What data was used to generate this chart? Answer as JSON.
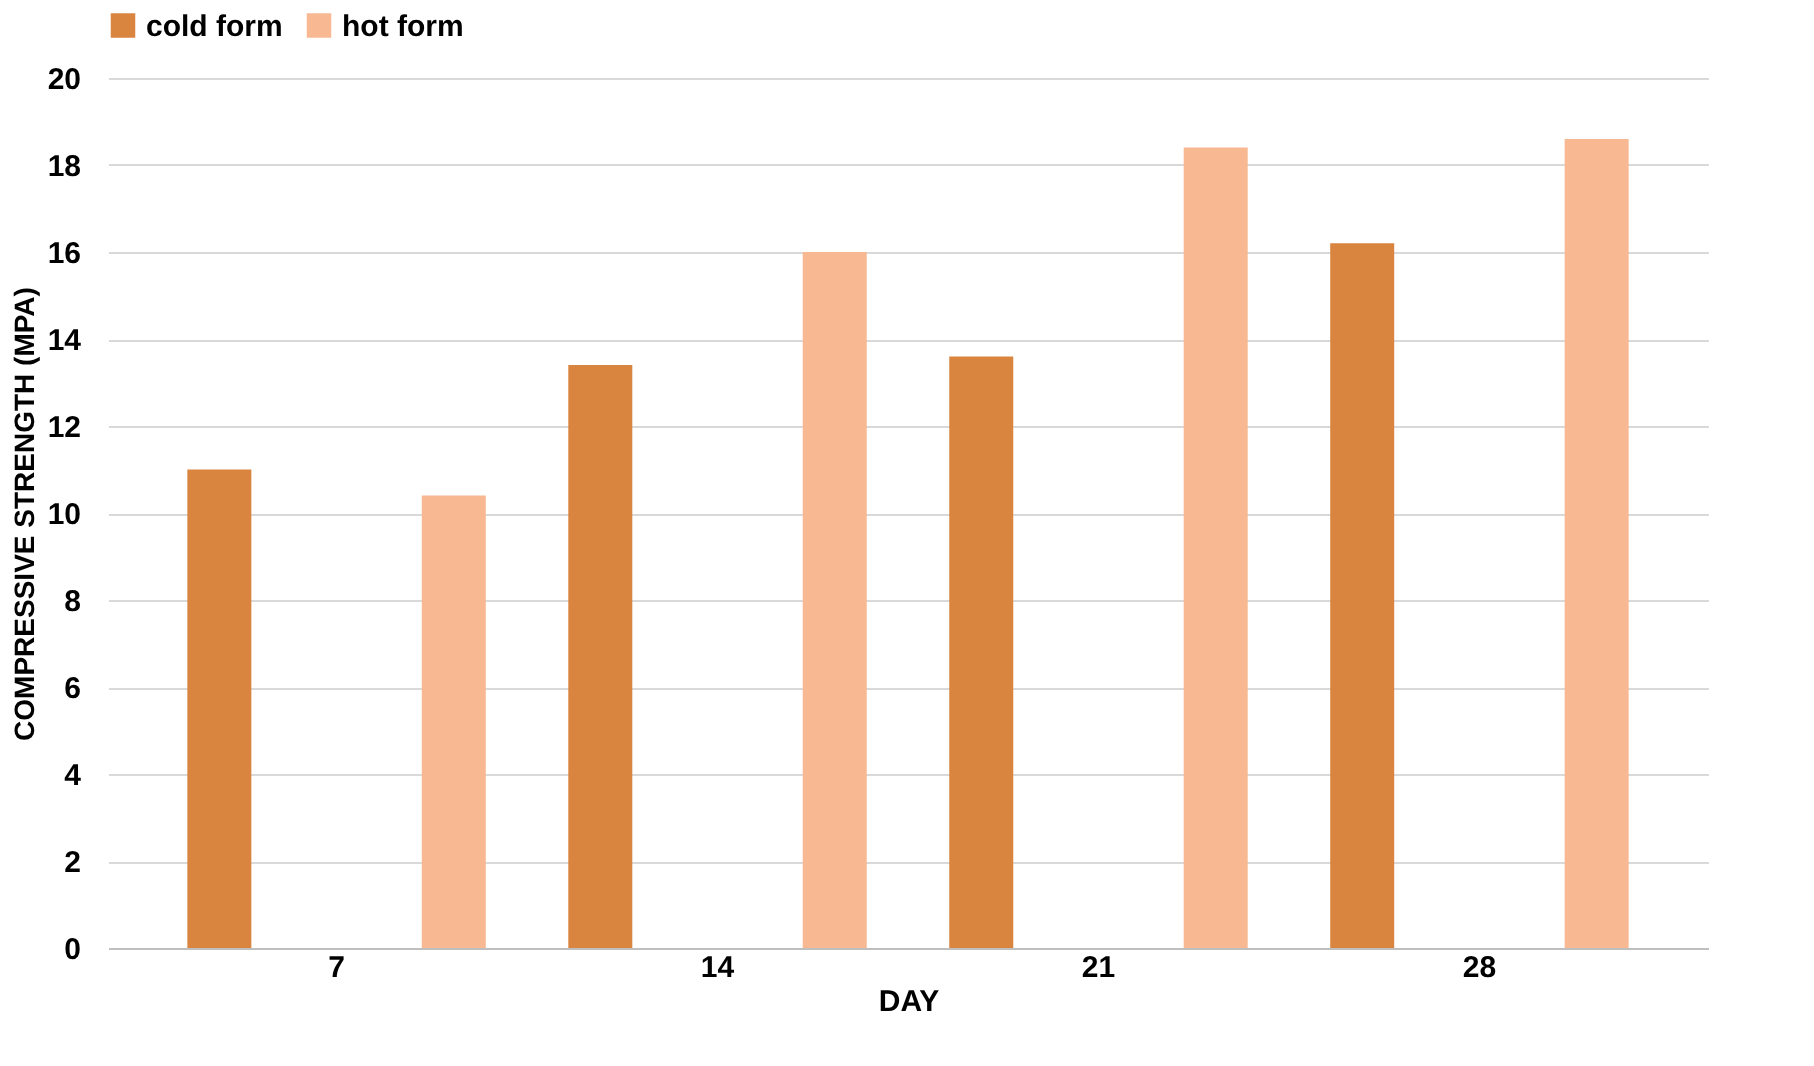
{
  "chart_data": {
    "type": "bar",
    "xlabel": "DAY",
    "ylabel": "COMPRESSIVE STRENGTH (MPA)",
    "categories": [
      "7",
      "14",
      "21",
      "28"
    ],
    "series": [
      {
        "name": "cold form",
        "color": "#d9843f",
        "values": [
          11.0,
          13.4,
          13.6,
          16.2
        ]
      },
      {
        "name": "hot form",
        "color": "#f8b892",
        "values": [
          10.4,
          16.0,
          18.4,
          18.6
        ]
      }
    ],
    "ylim": [
      0,
      20
    ],
    "yticks": [
      0,
      2,
      4,
      6,
      8,
      10,
      12,
      14,
      16,
      18,
      20
    ],
    "grid": "y",
    "legend": "top"
  }
}
